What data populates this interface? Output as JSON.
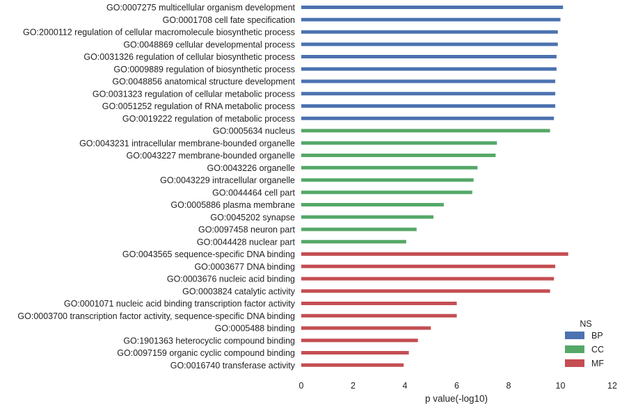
{
  "chart_data": {
    "type": "bar",
    "orientation": "horizontal",
    "xlabel": "p value(-log10)",
    "ylabel": "",
    "xlim": [
      0,
      12
    ],
    "xticks": [
      0,
      2,
      4,
      6,
      8,
      10,
      12
    ],
    "grid": false,
    "legend": {
      "title": "NS",
      "placement": "bottom-right",
      "entries": [
        {
          "name": "BP",
          "color": "#4c72b0"
        },
        {
          "name": "CC",
          "color": "#55a868"
        },
        {
          "name": "MF",
          "color": "#c44e52"
        }
      ]
    },
    "categories": [
      {
        "label": "GO:0007275 multicellular organism development",
        "group": "BP",
        "value": 10.1
      },
      {
        "label": "GO:0001708 cell fate specification",
        "group": "BP",
        "value": 10.0
      },
      {
        "label": "GO:2000112 regulation of cellular macromolecule biosynthetic process",
        "group": "BP",
        "value": 9.9
      },
      {
        "label": "GO:0048869 cellular developmental process",
        "group": "BP",
        "value": 9.9
      },
      {
        "label": "GO:0031326 regulation of cellular biosynthetic process",
        "group": "BP",
        "value": 9.85
      },
      {
        "label": "GO:0009889 regulation of biosynthetic process",
        "group": "BP",
        "value": 9.85
      },
      {
        "label": "GO:0048856 anatomical structure development",
        "group": "BP",
        "value": 9.8
      },
      {
        "label": "GO:0031323 regulation of cellular metabolic process",
        "group": "BP",
        "value": 9.8
      },
      {
        "label": "GO:0051252 regulation of RNA metabolic process",
        "group": "BP",
        "value": 9.8
      },
      {
        "label": "GO:0019222 regulation of metabolic process",
        "group": "BP",
        "value": 9.75
      },
      {
        "label": "GO:0005634 nucleus",
        "group": "CC",
        "value": 9.6
      },
      {
        "label": "GO:0043231 intracellular membrane-bounded organelle",
        "group": "CC",
        "value": 7.55
      },
      {
        "label": "GO:0043227 membrane-bounded organelle",
        "group": "CC",
        "value": 7.5
      },
      {
        "label": "GO:0043226 organelle",
        "group": "CC",
        "value": 6.8
      },
      {
        "label": "GO:0043229 intracellular organelle",
        "group": "CC",
        "value": 6.65
      },
      {
        "label": "GO:0044464 cell part",
        "group": "CC",
        "value": 6.6
      },
      {
        "label": "GO:0005886 plasma membrane",
        "group": "CC",
        "value": 5.5
      },
      {
        "label": "GO:0045202 synapse",
        "group": "CC",
        "value": 5.1
      },
      {
        "label": "GO:0097458 neuron part",
        "group": "CC",
        "value": 4.45
      },
      {
        "label": "GO:0044428 nuclear part",
        "group": "CC",
        "value": 4.05
      },
      {
        "label": "GO:0043565 sequence-specific DNA binding",
        "group": "MF",
        "value": 10.3
      },
      {
        "label": "GO:0003677 DNA binding",
        "group": "MF",
        "value": 9.8
      },
      {
        "label": "GO:0003676 nucleic acid binding",
        "group": "MF",
        "value": 9.75
      },
      {
        "label": "GO:0003824 catalytic activity",
        "group": "MF",
        "value": 9.6
      },
      {
        "label": "GO:0001071 nucleic acid binding transcription factor activity",
        "group": "MF",
        "value": 6.0
      },
      {
        "label": "GO:0003700 transcription factor activity, sequence-specific DNA binding",
        "group": "MF",
        "value": 6.0
      },
      {
        "label": "GO:0005488 binding",
        "group": "MF",
        "value": 5.0
      },
      {
        "label": "GO:1901363 heterocyclic compound binding",
        "group": "MF",
        "value": 4.5
      },
      {
        "label": "GO:0097159 organic cyclic compound binding",
        "group": "MF",
        "value": 4.15
      },
      {
        "label": "GO:0016740 transferase activity",
        "group": "MF",
        "value": 3.95
      }
    ]
  }
}
